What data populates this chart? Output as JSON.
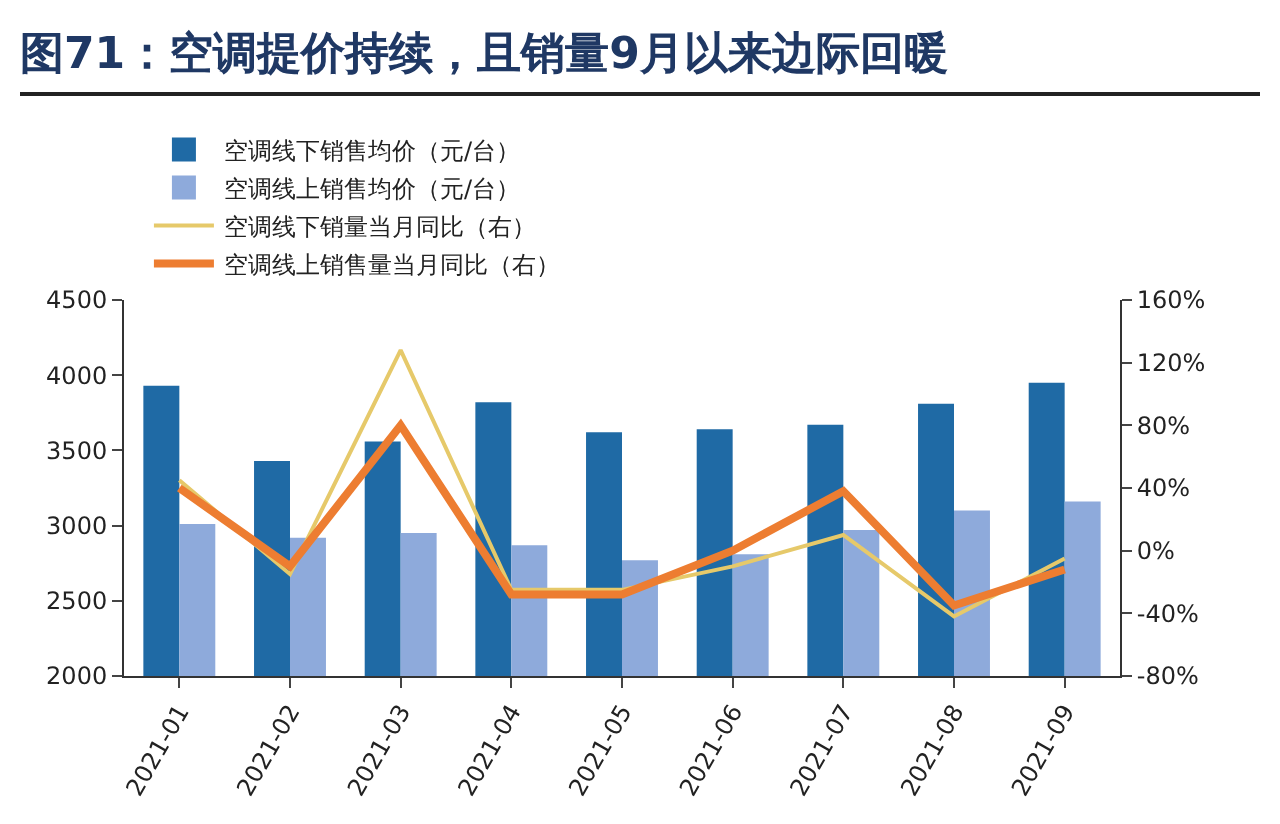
{
  "chart_data": {
    "type": "bar",
    "title": "图71：空调提价持续，且销量9月以来边际回暖",
    "categories": [
      "2021-01",
      "2021-02",
      "2021-03",
      "2021-04",
      "2021-05",
      "2021-06",
      "2021-07",
      "2021-08",
      "2021-09"
    ],
    "series": [
      {
        "name": "空调线下销售均价（元/台）",
        "color": "#1f6aa5",
        "values": [
          3930,
          3430,
          3560,
          3820,
          3620,
          3640,
          3670,
          3810,
          3950
        ]
      },
      {
        "name": "空调线上销售均价（元/台）",
        "color": "#8eaadb",
        "values": [
          3010,
          2920,
          2950,
          2870,
          2770,
          2810,
          2970,
          3100,
          3160
        ]
      },
      {
        "name": "空调线下销量当月同比（右）",
        "type": "line",
        "axis": "y2",
        "color": "#e6c96a",
        "values": [
          45,
          -15,
          128,
          -25,
          -25,
          -10,
          10,
          -42,
          -5
        ]
      },
      {
        "name": "空调线上销售量当月同比（右）",
        "type": "line",
        "axis": "y2",
        "color": "#ed7d31",
        "values": [
          40,
          -10,
          80,
          -28,
          -28,
          0,
          38,
          -35,
          -12
        ]
      }
    ],
    "ylim": [
      2000,
      4500
    ],
    "yticks": [
      2000,
      2500,
      3000,
      3500,
      4000,
      4500
    ],
    "y2lim": [
      -80,
      160
    ],
    "y2ticks": [
      {
        "value": -80,
        "label": "-80%"
      },
      {
        "value": -40,
        "label": "-40%"
      },
      {
        "value": 0,
        "label": "0%"
      },
      {
        "value": 40,
        "label": "40%"
      },
      {
        "value": 80,
        "label": "80%"
      },
      {
        "value": 120,
        "label": "120%"
      },
      {
        "value": 160,
        "label": "160%"
      }
    ],
    "legend": "top"
  }
}
